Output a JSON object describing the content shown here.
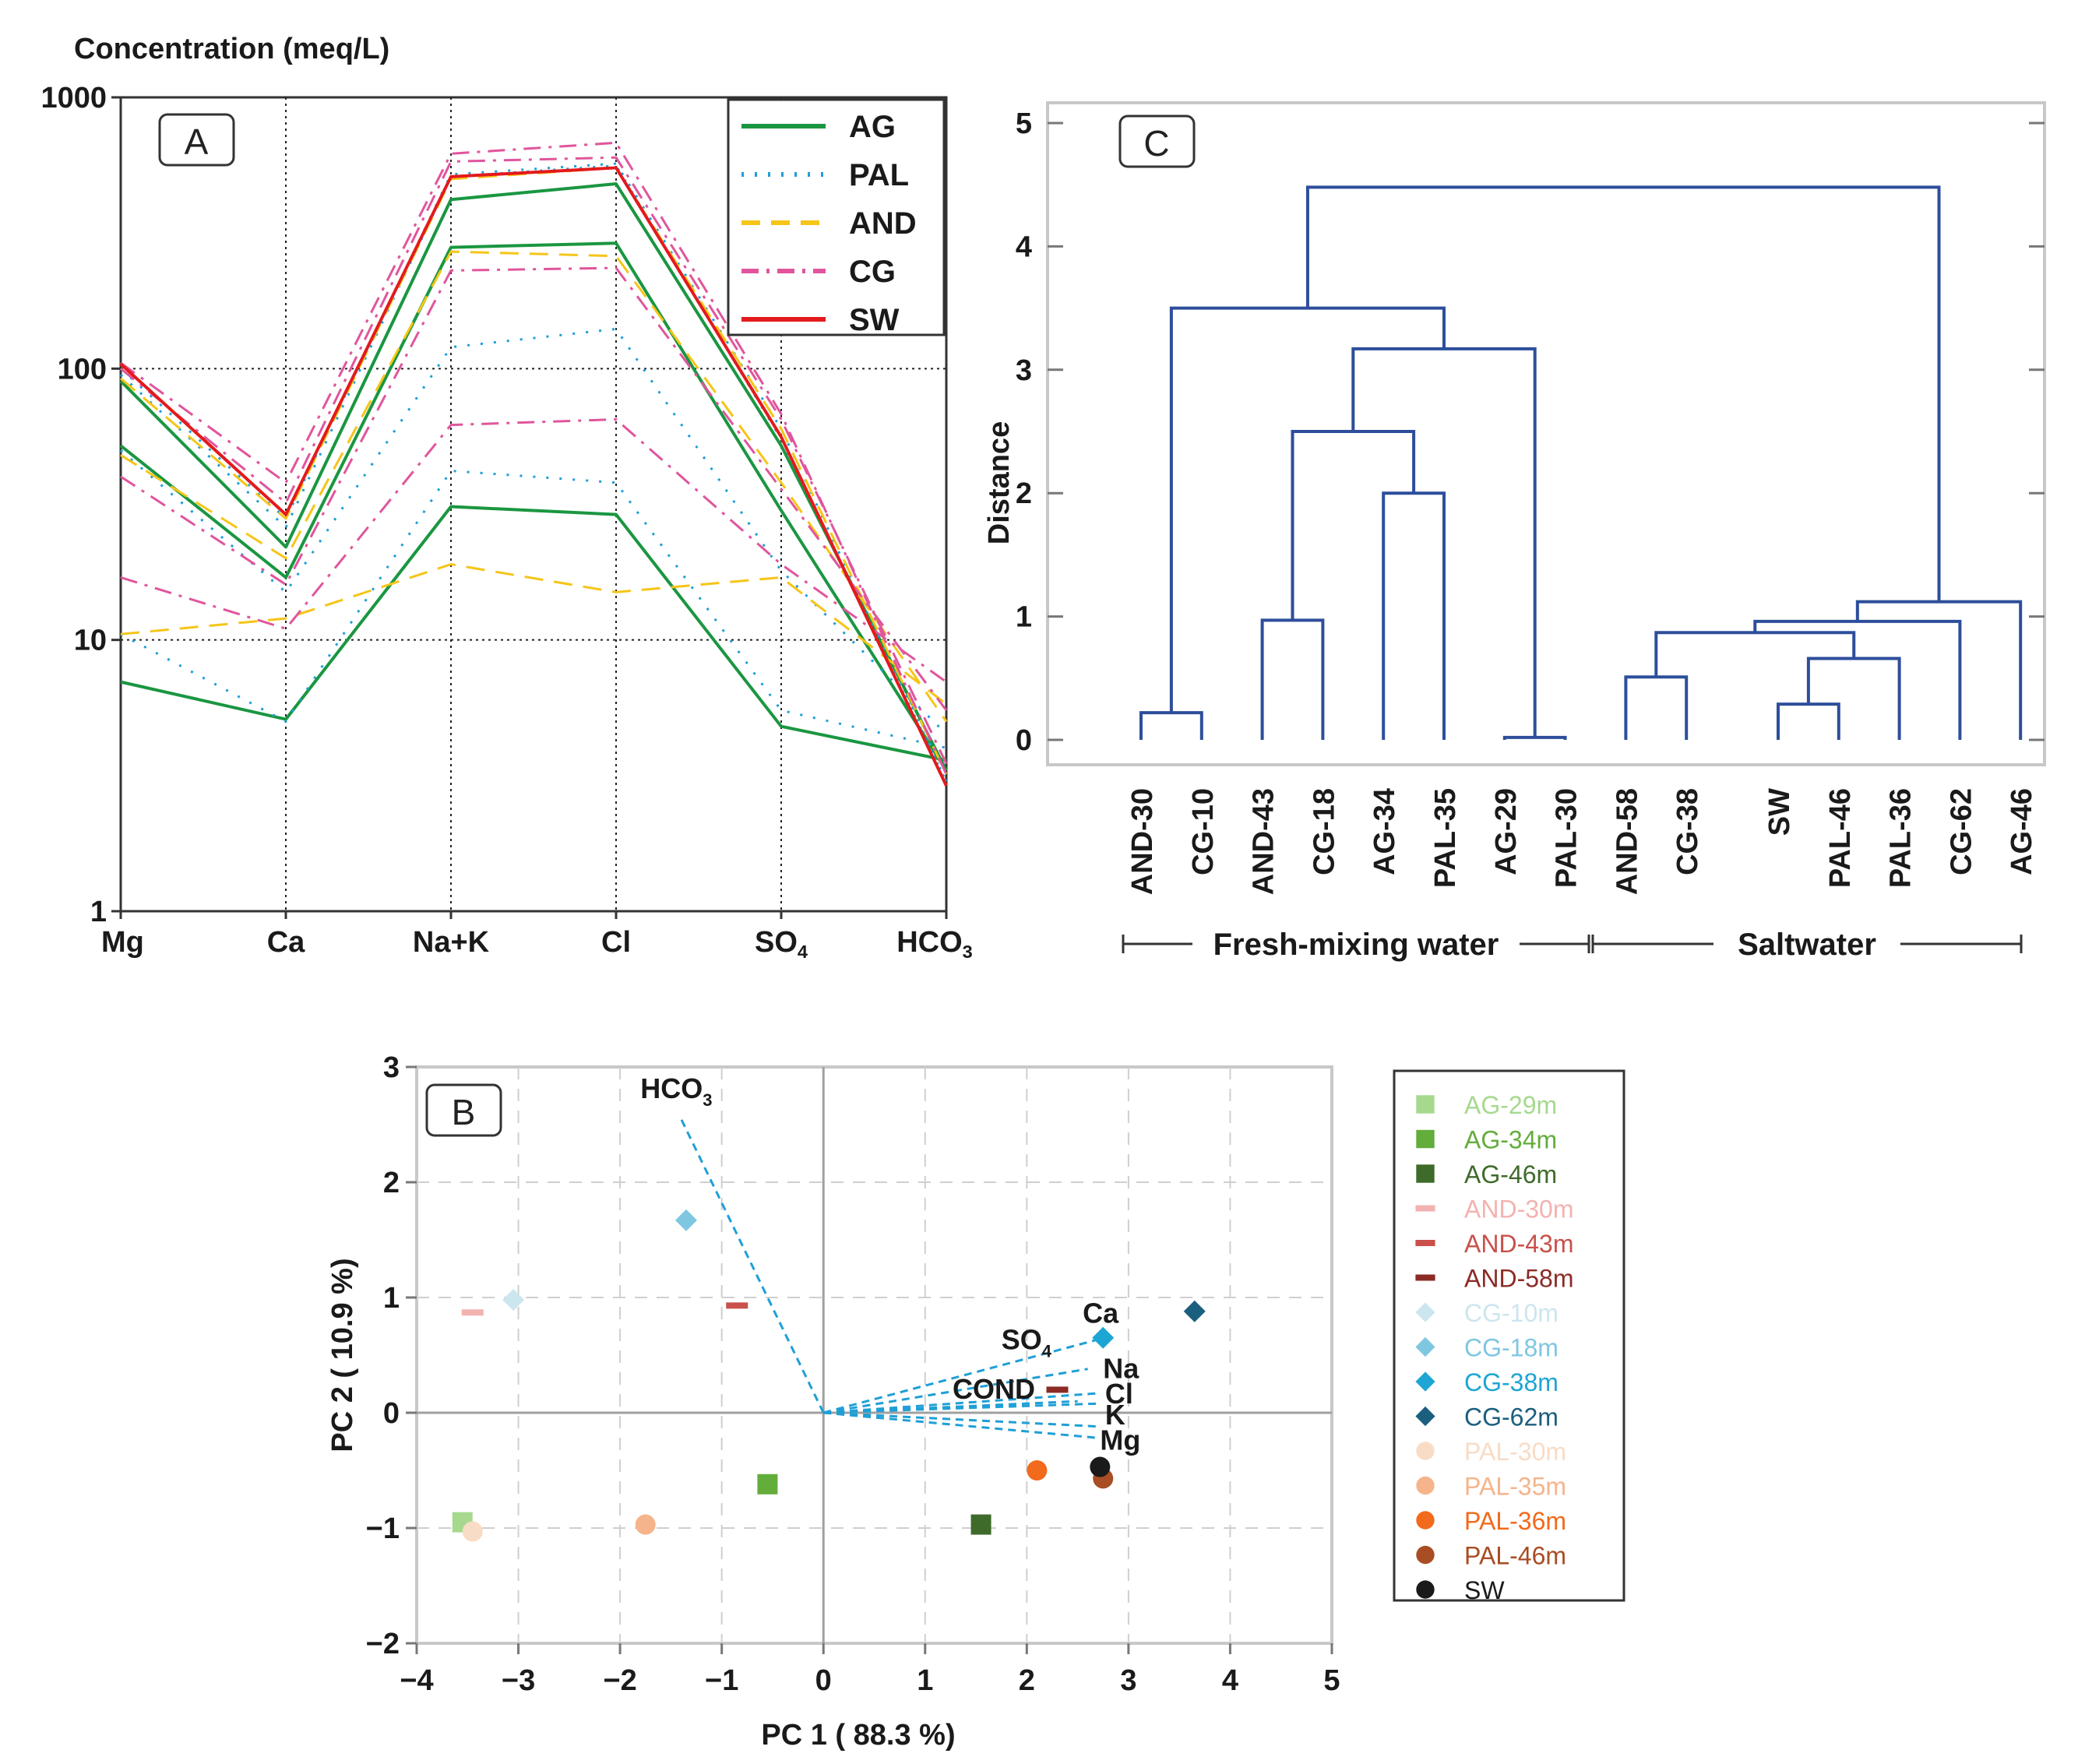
{
  "chart_data": [
    {
      "panel": "A",
      "type": "line",
      "title": "Concentration (meq/L)",
      "yscale": "log",
      "ylim": [
        1,
        1000
      ],
      "y_ticks": [
        "1",
        "10",
        "100",
        "1000"
      ],
      "categories": [
        "Mg",
        "Ca",
        "Na+K",
        "Cl",
        "SO4",
        "HCO3"
      ],
      "legend_position": "top-right",
      "legend": [
        {
          "name": "AG",
          "color": "#1a9641",
          "dash": "solid"
        },
        {
          "name": "PAL",
          "color": "#1f9fd6",
          "dash": "dot"
        },
        {
          "name": "AND",
          "color": "#f5c518",
          "dash": "dash"
        },
        {
          "name": "CG",
          "color": "#e0559c",
          "dash": "dashdot"
        },
        {
          "name": "SW",
          "color": "#e31a1c",
          "dash": "solid"
        }
      ],
      "series": [
        {
          "name": "AG-29",
          "group": "AG",
          "values": [
            7.0,
            5.1,
            31,
            29,
            4.8,
            3.6
          ]
        },
        {
          "name": "AG-34",
          "group": "AG",
          "values": [
            52,
            17,
            280,
            290,
            30,
            3.3
          ]
        },
        {
          "name": "AG-46",
          "group": "AG",
          "values": [
            90,
            22,
            420,
            480,
            52,
            3.3
          ]
        },
        {
          "name": "PAL-30",
          "group": "PAL",
          "values": [
            10.5,
            5.0,
            42,
            38,
            5.5,
            4.0
          ]
        },
        {
          "name": "PAL-35",
          "group": "PAL",
          "values": [
            50,
            15,
            120,
            140,
            18,
            4.5
          ]
        },
        {
          "name": "PAL-36",
          "group": "PAL",
          "values": [
            95,
            26,
            510,
            560,
            55,
            3.0
          ]
        },
        {
          "name": "PAL-46",
          "group": "PAL",
          "values": [
            100,
            28,
            520,
            570,
            60,
            3.0
          ]
        },
        {
          "name": "AND-30",
          "group": "AND",
          "values": [
            10.5,
            12,
            19,
            15,
            17,
            5.8
          ]
        },
        {
          "name": "AND-43",
          "group": "AND",
          "values": [
            48,
            20,
            270,
            260,
            38,
            5.0
          ]
        },
        {
          "name": "AND-58",
          "group": "AND",
          "values": [
            92,
            28,
            500,
            550,
            60,
            3.2
          ]
        },
        {
          "name": "CG-10",
          "group": "CG",
          "values": [
            17,
            11,
            62,
            65,
            19,
            7.0
          ]
        },
        {
          "name": "CG-18",
          "group": "CG",
          "values": [
            40,
            16,
            230,
            235,
            36,
            5.5
          ]
        },
        {
          "name": "CG-38",
          "group": "CG",
          "values": [
            100,
            32,
            580,
            600,
            65,
            3.5
          ]
        },
        {
          "name": "CG-62",
          "group": "CG",
          "values": [
            105,
            38,
            620,
            680,
            68,
            3.2
          ]
        },
        {
          "name": "SW",
          "group": "SW",
          "values": [
            104,
            29,
            510,
            550,
            56,
            2.9
          ]
        }
      ]
    },
    {
      "panel": "C",
      "type": "dendrogram",
      "ylabel": "Distance",
      "ylim": [
        0,
        5
      ],
      "y_ticks": [
        "0",
        "1",
        "2",
        "3",
        "4",
        "5"
      ],
      "leaves": [
        "AND-30",
        "CG-10",
        "AND-43",
        "CG-18",
        "AG-34",
        "PAL-35",
        "AG-29",
        "PAL-30",
        "AND-58",
        "CG-38",
        "SW",
        "PAL-46",
        "PAL-36",
        "CG-62",
        "AG-46"
      ],
      "merges": [
        {
          "a": "AG-29",
          "b": "PAL-30",
          "height": 0.02
        },
        {
          "a": "AND-30",
          "b": "CG-10",
          "height": 0.22
        },
        {
          "a": "SW",
          "b": "PAL-46",
          "height": 0.29
        },
        {
          "a": "AND-58",
          "b": "CG-38",
          "height": 0.51
        },
        {
          "a": "(SW,PAL-46)",
          "b": "PAL-36",
          "height": 0.66
        },
        {
          "a": "(AND-58,CG-38)",
          "b": "((SW,PAL-46),PAL-36)",
          "height": 0.87
        },
        {
          "a": "cluster",
          "b": "CG-62",
          "height": 0.96
        },
        {
          "a": "AND-43",
          "b": "CG-18",
          "height": 0.97
        },
        {
          "a": "cluster",
          "b": "AG-46",
          "height": 1.12
        },
        {
          "a": "AG-34",
          "b": "PAL-35",
          "height": 2.0
        },
        {
          "a": "(AND-43,CG-18)",
          "b": "(AG-34,PAL-35)",
          "height": 2.5
        },
        {
          "a": "cluster",
          "b": "(AG-29,PAL-30)",
          "height": 3.17
        },
        {
          "a": "(AND-30,CG-10)",
          "b": "cluster",
          "height": 3.5
        },
        {
          "a": "Fresh-mixing water",
          "b": "Saltwater",
          "height": 4.48
        }
      ],
      "groups": [
        {
          "label": "Fresh-mixing water"
        },
        {
          "label": "Saltwater"
        }
      ]
    },
    {
      "panel": "B",
      "type": "scatter",
      "xlabel": "PC 1 ( 88.3 %)",
      "ylabel": "PC 2 ( 10.9 %)",
      "xlim": [
        -4,
        5
      ],
      "ylim": [
        -2,
        3
      ],
      "x_ticks": [
        "−4",
        "−3",
        "−2",
        "−1",
        "0",
        "1",
        "2",
        "3",
        "4",
        "5"
      ],
      "y_ticks": [
        "−2",
        "−1",
        "0",
        "1",
        "2",
        "3"
      ],
      "points": [
        {
          "label": "AG-29m",
          "marker": "square",
          "color": "#a6d98e",
          "x": -3.55,
          "y": -0.95
        },
        {
          "label": "AG-34m",
          "marker": "square",
          "color": "#63ad3b",
          "x": -0.55,
          "y": -0.62
        },
        {
          "label": "AG-46m",
          "marker": "square",
          "color": "#3f6b2a",
          "x": 1.55,
          "y": -0.97
        },
        {
          "label": "AND-30m",
          "marker": "dash",
          "color": "#f2b3b0",
          "x": -3.45,
          "y": 0.87
        },
        {
          "label": "AND-43m",
          "marker": "dash",
          "color": "#c9504b",
          "x": -0.85,
          "y": 0.93
        },
        {
          "label": "AND-58m",
          "marker": "dash",
          "color": "#8b2b26",
          "x": 2.3,
          "y": 0.2
        },
        {
          "label": "CG-10m",
          "marker": "diamond",
          "color": "#cce6ef",
          "x": -3.05,
          "y": 0.98
        },
        {
          "label": "CG-18m",
          "marker": "diamond",
          "color": "#7fc7e0",
          "x": -1.35,
          "y": 1.67
        },
        {
          "label": "CG-38m",
          "marker": "diamond",
          "color": "#1da6d4",
          "x": 2.75,
          "y": 0.65
        },
        {
          "label": "CG-62m",
          "marker": "diamond",
          "color": "#1b5f7e",
          "x": 3.65,
          "y": 0.88
        },
        {
          "label": "PAL-30m",
          "marker": "circle",
          "color": "#f8dcc6",
          "x": -3.45,
          "y": -1.03
        },
        {
          "label": "PAL-35m",
          "marker": "circle",
          "color": "#f6b48b",
          "x": -1.75,
          "y": -0.97
        },
        {
          "label": "PAL-36m",
          "marker": "circle",
          "color": "#f26a1b",
          "x": 2.1,
          "y": -0.5
        },
        {
          "label": "PAL-46m",
          "marker": "circle",
          "color": "#a84d24",
          "x": 2.75,
          "y": -0.57
        },
        {
          "label": "SW",
          "marker": "circle",
          "color": "#1a1a1a",
          "x": 2.72,
          "y": -0.47
        }
      ],
      "loadings": [
        {
          "label": "HCO",
          "sub": "3",
          "x": -1.4,
          "y": 2.55
        },
        {
          "label": "Ca",
          "x": 2.72,
          "y": 0.64
        },
        {
          "label": "SO",
          "sub": "4",
          "x": 2.6,
          "y": 0.38
        },
        {
          "label": "COND",
          "x": 2.5,
          "y": 0.1
        },
        {
          "label": "Na",
          "x": 2.72,
          "y": 0.17
        },
        {
          "label": "Cl",
          "x": 2.72,
          "y": 0.08
        },
        {
          "label": "K",
          "x": 2.72,
          "y": -0.12
        },
        {
          "label": "Mg",
          "x": 2.72,
          "y": -0.22
        }
      ]
    }
  ]
}
